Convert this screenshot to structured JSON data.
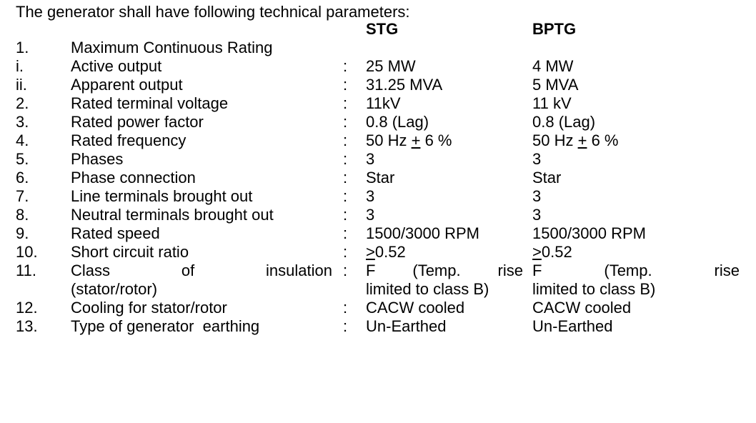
{
  "intro": "The generator shall have following technical parameters:",
  "columns": {
    "stg": "STG",
    "bptg": "BPTG"
  },
  "rows": [
    {
      "num": "1.",
      "label": "Maximum Continuous Rating"
    },
    {
      "num": "i.",
      "label": "Active output",
      "colon": ":",
      "stg": "25 MW",
      "bptg": "4 MW"
    },
    {
      "num": "ii.",
      "label": "Apparent output",
      "colon": ":",
      "stg": "31.25 MVA",
      "bptg": "5 MVA"
    },
    {
      "num": "2.",
      "label": "Rated terminal voltage",
      "colon": ":",
      "stg": "11kV",
      "bptg": "11 kV"
    },
    {
      "num": "3.",
      "label": "Rated power factor",
      "colon": ":",
      "stg": "0.8 (Lag)",
      "bptg": "0.8 (Lag)"
    },
    {
      "num": "4.",
      "label": "Rated frequency",
      "colon": ":",
      "stg_pre": "50 Hz ",
      "stg_sym": "+",
      "stg_post": " 6 %",
      "bptg_pre": "50 Hz ",
      "bptg_sym": "+",
      "bptg_post": " 6 %"
    },
    {
      "num": "5.",
      "label": "Phases",
      "colon": ":",
      "stg": "3",
      "bptg": "3"
    },
    {
      "num": "6.",
      "label": "Phase connection",
      "colon": ":",
      "stg": "Star",
      "bptg": "Star"
    },
    {
      "num": "7.",
      "label": "Line terminals brought out",
      "colon": ":",
      "stg": "3",
      "bptg": "3"
    },
    {
      "num": "8.",
      "label": "Neutral terminals brought out",
      "colon": ":",
      "stg": "3",
      "bptg": "3"
    },
    {
      "num": "9.",
      "label": "Rated speed",
      "colon": ":",
      "stg": "1500/3000 RPM",
      "bptg": "1500/3000 RPM"
    },
    {
      "num": "10.",
      "label": "Short circuit ratio",
      "colon": ":",
      "stg_sym": ">",
      "stg_post": "0.52",
      "bptg_sym": ">",
      "bptg_post": "0.52"
    },
    {
      "num": "11.",
      "label_words": [
        "Class",
        "of",
        "insulation"
      ],
      "colon": ":",
      "stg_words": [
        "F",
        "(Temp.",
        "rise"
      ],
      "bptg_words": [
        "F",
        "(Temp.",
        "rise"
      ]
    },
    {
      "label": "(stator/rotor)",
      "stg": "limited to class B)",
      "bptg": "limited to class B)"
    },
    {
      "num": "12.",
      "label": "Cooling for stator/rotor",
      "colon": ":",
      "stg": "CACW cooled",
      "bptg": "CACW cooled"
    },
    {
      "num": "13.",
      "label": "Type of generator  earthing",
      "colon": ":",
      "stg": "Un-Earthed",
      "bptg": "Un-Earthed"
    }
  ]
}
